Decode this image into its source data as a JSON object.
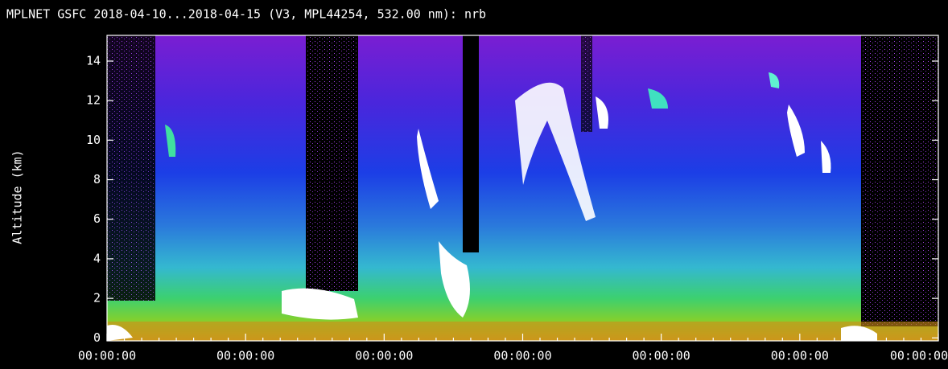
{
  "chart_data": {
    "type": "curtain",
    "title": "MPLNET GSFC 2018-04-10...2018-04-15 (V3, MPL44254, 532.00 nm): nrb",
    "y_label": "Altitude (km)",
    "categories": [
      "00:00:00",
      "00:00:00",
      "00:00:00",
      "00:00:00",
      "00:00:00",
      "00:00:00",
      "00:00:00"
    ],
    "ylim": [
      -0.15,
      15.3
    ],
    "yticks": [
      0,
      2,
      4,
      6,
      8,
      10,
      12,
      14
    ]
  }
}
